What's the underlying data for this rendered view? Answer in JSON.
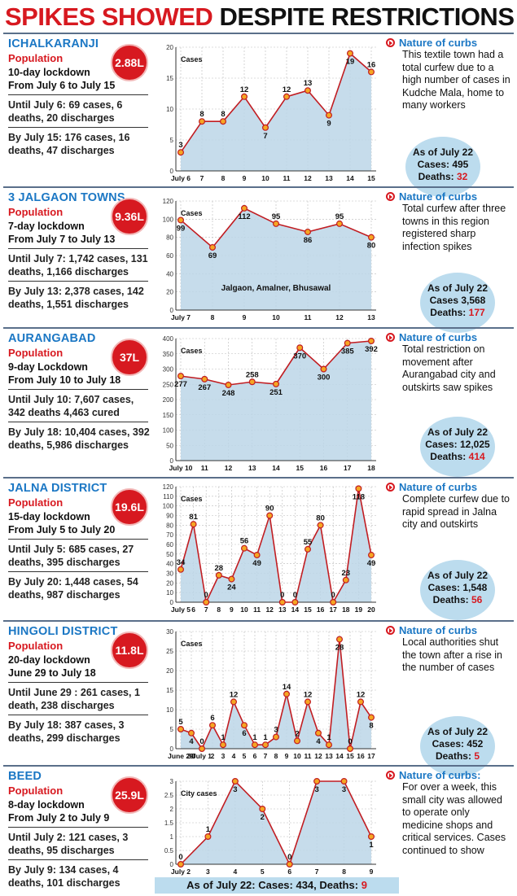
{
  "headline": {
    "part1": "SPIKES SHOWED",
    "part2": "DESPITE RESTRICTIONS"
  },
  "colors": {
    "line": "#c11d22",
    "marker_fill": "#f5a623",
    "area": "#bcd6e8",
    "accent_blue": "#1b77c4",
    "accent_red": "#d71920"
  },
  "panels": [
    {
      "place": "ICHALKARANJI",
      "population_label": "Population",
      "population": "2.88L",
      "lockdown": "10-day lockdown",
      "period": "From July 6 to July 15",
      "until": "Until July 6: 69 cases, 6 deaths, 20 discharges",
      "by": "By July 15: 176 cases, 16 deaths, 47 discharges",
      "curbs_label": "Nature of curbs",
      "curbs": "This textile town had a total curfew due to a high number of cases in Kudche Mala, home to many workers",
      "asof_label": "As of July 22",
      "asof_cases": "Cases: 495",
      "asof_deaths_label": "Deaths:",
      "asof_deaths": "32"
    },
    {
      "place": "3 JALGAON TOWNS",
      "population_label": "Population",
      "population": "9.36L",
      "lockdown": "7-day lockdown",
      "period": "From July 7 to July 13",
      "until": "Until July 7: 1,742 cases, 131 deaths, 1,166 discharges",
      "by": "By July 13: 2,378 cases, 142 deaths, 1,551 discharges",
      "curbs_label": "Nature of curbs",
      "curbs": "Total curfew after three towns in this region registered sharp infection spikes",
      "asof_label": "As of July 22",
      "asof_cases": "Cases 3,568",
      "asof_deaths_label": "Deaths:",
      "asof_deaths": "177"
    },
    {
      "place": "AURANGABAD",
      "population_label": "Population",
      "population": "37L",
      "lockdown": "9-day Lockdown",
      "period": "From July 10 to July 18",
      "until": "Until July 10: 7,607 cases, 342 deaths 4,463 cured",
      "by": "By July 18: 10,404 cases, 392 deaths, 5,986 discharges",
      "curbs_label": "Nature of curbs",
      "curbs": "Total restriction on movement after Aurangabad city and outskirts saw spikes",
      "asof_label": "As of July 22",
      "asof_cases": "Cases: 12,025",
      "asof_deaths_label": "Deaths:",
      "asof_deaths": "414"
    },
    {
      "place": "JALNA DISTRICT",
      "population_label": "Population",
      "population": "19.6L",
      "lockdown": "15-day lockdown",
      "period": "From July 5 to July 20",
      "until": "Until July 5: 685 cases, 27 deaths, 395 discharges",
      "by": "By July 20: 1,448 cases, 54 deaths, 987 discharges",
      "curbs_label": "Nature of curbs",
      "curbs": "Complete curfew due to rapid spread in Jalna city and outskirts",
      "asof_label": "As of July 22",
      "asof_cases": "Cases: 1,548",
      "asof_deaths_label": "Deaths:",
      "asof_deaths": "56"
    },
    {
      "place": "HINGOLI DISTRICT",
      "population_label": "Population",
      "population": "11.8L",
      "lockdown": "20-day lockdown",
      "period": "June 29 to July 18",
      "until": "Until June 29 : 261 cases, 1 death, 238 discharges",
      "by": "By July 18: 387 cases, 3 deaths, 299 discharges",
      "curbs_label": "Nature of curbs",
      "curbs": "Local authorities shut the town after a rise in the number of cases",
      "asof_label": "As of July 22",
      "asof_cases": "Cases: 452",
      "asof_deaths_label": "Deaths:",
      "asof_deaths": "5"
    },
    {
      "place": "BEED",
      "population_label": "Population",
      "population": "25.9L",
      "lockdown": "8-day lockdown",
      "period": "From July 2 to July 9",
      "until": "Until July 2: 121 cases, 3 deaths, 95 discharges",
      "by": "By July 9: 134 cases, 4 deaths, 101 discharges",
      "curbs_label": "Nature of curbs:",
      "curbs": "For over a week, this small city was allowed to operate only medicine shops and critical services. Cases continued to show",
      "footer_label": "As of July 22: Cases: 434, Deaths:",
      "footer_deaths": "9"
    }
  ],
  "chart_data": [
    {
      "type": "area",
      "title": "Ichalkaranji",
      "ylabel": "Cases",
      "ylim": [
        0,
        20
      ],
      "yticks": [
        0,
        5,
        10,
        15,
        20
      ],
      "categories": [
        "July 6",
        "7",
        "8",
        "9",
        "10",
        "11",
        "12",
        "13",
        "14",
        "15"
      ],
      "values": [
        3,
        8,
        8,
        12,
        7,
        12,
        13,
        9,
        19,
        16
      ],
      "labels": [
        "3",
        "8",
        "8",
        "12",
        "7",
        "12",
        "13",
        "9",
        "19",
        "16"
      ],
      "annotation": ""
    },
    {
      "type": "area",
      "title": "3 Jalgaon towns",
      "ylabel": "Cases",
      "ylim": [
        0,
        120
      ],
      "yticks": [
        0,
        20,
        40,
        60,
        80,
        100,
        120
      ],
      "categories": [
        "July 7",
        "8",
        "9",
        "10",
        "11",
        "12",
        "13"
      ],
      "values": [
        99,
        69,
        112,
        95,
        86,
        95,
        80
      ],
      "labels": [
        "99",
        "69",
        "112",
        "95",
        "86",
        "95",
        "80"
      ],
      "annotation": "Jalgaon, Amalner, Bhusawal"
    },
    {
      "type": "area",
      "title": "Aurangabad",
      "ylabel": "Cases",
      "ylim": [
        0,
        400
      ],
      "yticks": [
        0,
        50,
        100,
        150,
        200,
        250,
        300,
        350,
        400
      ],
      "categories": [
        "July 10",
        "11",
        "12",
        "13",
        "14",
        "15",
        "16",
        "17",
        "18"
      ],
      "values": [
        277,
        267,
        248,
        258,
        251,
        370,
        300,
        385,
        392
      ],
      "labels": [
        "277",
        "267",
        "248",
        "258",
        "251",
        "370",
        "300",
        "385",
        "392"
      ],
      "annotation": ""
    },
    {
      "type": "area",
      "title": "Jalna district",
      "ylabel": "Cases",
      "ylim": [
        0,
        120
      ],
      "yticks": [
        0,
        10,
        20,
        30,
        40,
        50,
        60,
        70,
        80,
        90,
        100,
        110,
        120
      ],
      "categories": [
        "July 5",
        "6",
        "7",
        "8",
        "9",
        "10",
        "11",
        "12",
        "13",
        "14",
        "15",
        "16",
        "17",
        "18",
        "19",
        "20"
      ],
      "values": [
        34,
        81,
        0,
        28,
        24,
        56,
        49,
        90,
        0,
        0,
        55,
        80,
        0,
        23,
        118,
        49
      ],
      "labels": [
        "34",
        "81",
        "0",
        "28",
        "24",
        "56",
        "49",
        "90",
        "0",
        "0",
        "55",
        "80",
        "0",
        "23",
        "118",
        "49"
      ],
      "annotation": ""
    },
    {
      "type": "area",
      "title": "Hingoli district",
      "ylabel": "Cases",
      "ylim": [
        0,
        30
      ],
      "yticks": [
        0,
        5,
        10,
        15,
        20,
        25,
        30
      ],
      "categories": [
        "June 29",
        "30",
        "July 1",
        "2",
        "3",
        "4",
        "5",
        "6",
        "7",
        "8",
        "9",
        "10",
        "11",
        "12",
        "13",
        "14",
        "15",
        "16",
        "17"
      ],
      "values": [
        5,
        4,
        0,
        6,
        1,
        12,
        6,
        1,
        1,
        3,
        14,
        2,
        12,
        4,
        1,
        28,
        0,
        12,
        8
      ],
      "labels": [
        "5",
        "4",
        "0",
        "6",
        "1",
        "12",
        "6",
        "1",
        "1",
        "3",
        "14",
        "2",
        "12",
        "4",
        "1",
        "28",
        "0",
        "12",
        "8"
      ],
      "annotation": ""
    },
    {
      "type": "area",
      "title": "Beed",
      "ylabel": "City cases",
      "ylim": [
        0,
        3
      ],
      "yticks": [
        0,
        0.5,
        1,
        1.5,
        2,
        2.5,
        3
      ],
      "categories": [
        "July 2",
        "3",
        "4",
        "5",
        "6",
        "7",
        "8",
        "9"
      ],
      "values": [
        0,
        1,
        3,
        2,
        0,
        3,
        3,
        1
      ],
      "labels": [
        "0",
        "1",
        "3",
        "2",
        "0",
        "3",
        "3",
        "1"
      ],
      "annotation": ""
    }
  ]
}
